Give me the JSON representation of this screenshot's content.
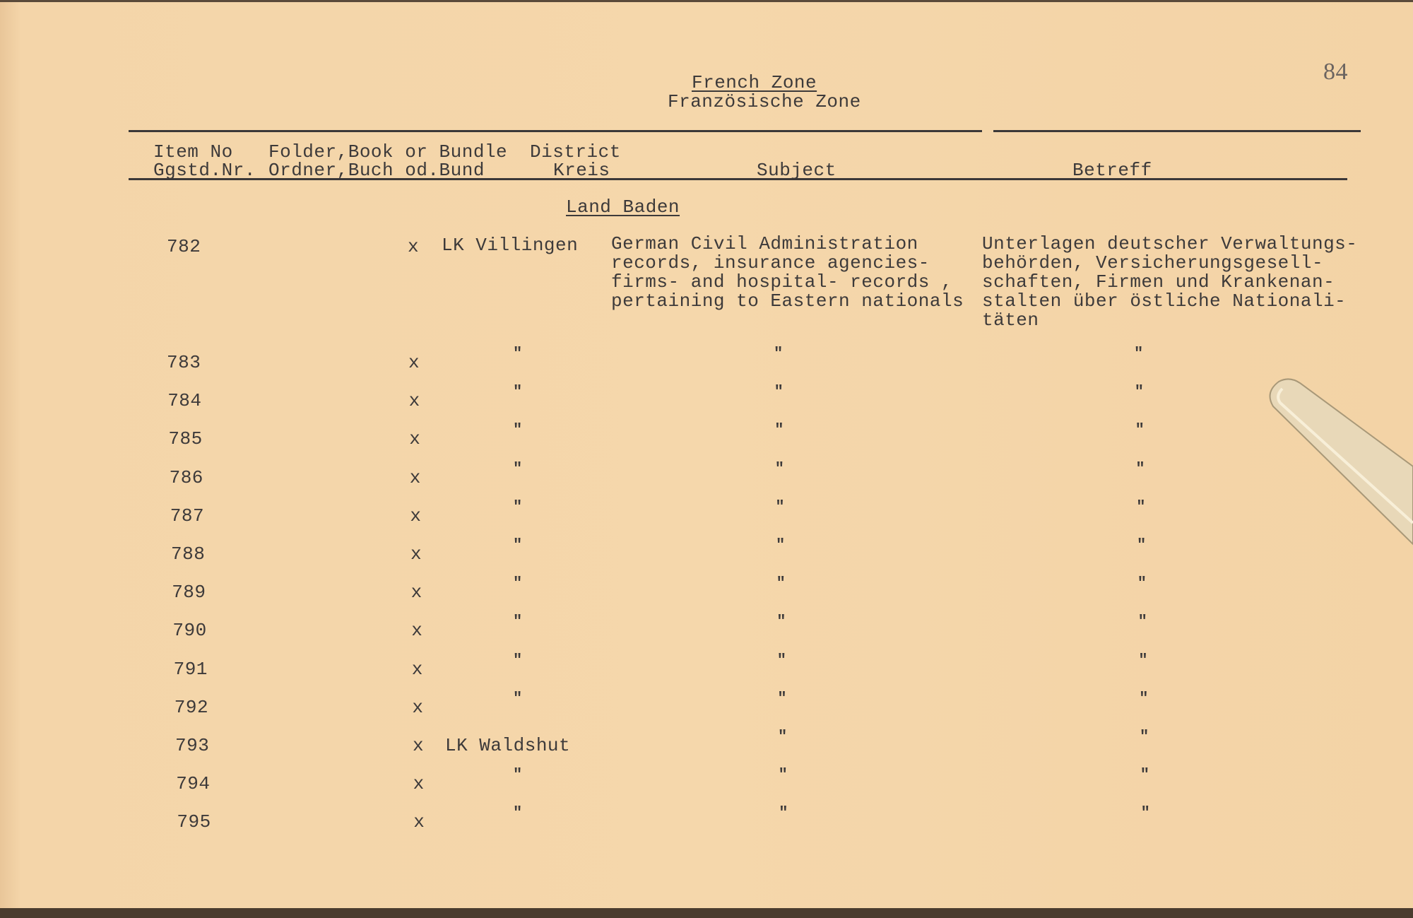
{
  "page_number": "84",
  "title": {
    "line1": "French Zone",
    "line2": "Französische Zone"
  },
  "headers": {
    "item": [
      "Item No",
      "Ggstd.Nr."
    ],
    "folder": [
      "Folder,Book or Bundle",
      "Ordner,Buch od.Bund"
    ],
    "district": [
      "District",
      "Kreis"
    ],
    "subject": "Subject",
    "betreff": "Betreff"
  },
  "section": "Land Baden",
  "first_row": {
    "item": "782",
    "folder": "x",
    "district": "LK Villingen",
    "subject": [
      "German Civil Administration",
      "records, insurance agencies-",
      "firms- and hospital- records ,",
      "pertaining to Eastern nationals"
    ],
    "betreff": [
      "Unterlagen deutscher Verwaltungs-",
      "behörden, Versicherungsgesell-",
      "schaften, Firmen und Krankenan-",
      "stalten über östliche Nationali-",
      "täten"
    ]
  },
  "rows": [
    {
      "item": "783",
      "folder": "x",
      "district": "\"",
      "subject": "\"",
      "betreff": "\""
    },
    {
      "item": "784",
      "folder": "x",
      "district": "\"",
      "subject": "\"",
      "betreff": "\""
    },
    {
      "item": "785",
      "folder": "x",
      "district": "\"",
      "subject": "\"",
      "betreff": "\""
    },
    {
      "item": "786",
      "folder": "x",
      "district": "\"",
      "subject": "\"",
      "betreff": "\""
    },
    {
      "item": "787",
      "folder": "x",
      "district": "\"",
      "subject": "\"",
      "betreff": "\""
    },
    {
      "item": "788",
      "folder": "x",
      "district": "\"",
      "subject": "\"",
      "betreff": "\""
    },
    {
      "item": "789",
      "folder": "x",
      "district": "\"",
      "subject": "\"",
      "betreff": "\""
    },
    {
      "item": "790",
      "folder": "x",
      "district": "\"",
      "subject": "\"",
      "betreff": "\""
    },
    {
      "item": "791",
      "folder": "x",
      "district": "\"",
      "subject": "\"",
      "betreff": "\""
    },
    {
      "item": "792",
      "folder": "x",
      "district": "\"",
      "subject": "\"",
      "betreff": "\""
    },
    {
      "item": "793",
      "folder": "x",
      "district": "LK Waldshut",
      "subject": "\"",
      "betreff": "\""
    },
    {
      "item": "794",
      "folder": "x",
      "district": "\"",
      "subject": "\"",
      "betreff": "\""
    },
    {
      "item": "795",
      "folder": "x",
      "district": "\"",
      "subject": "\"",
      "betreff": "\""
    }
  ]
}
